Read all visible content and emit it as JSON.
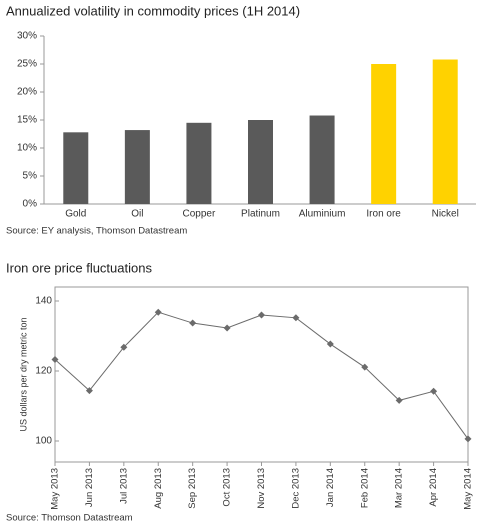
{
  "chart_data": [
    {
      "type": "bar",
      "title": "Annualized volatility in commodity prices (1H 2014)",
      "categories": [
        "Gold",
        "Oil",
        "Copper",
        "Platinum",
        "Aluminium",
        "Iron ore",
        "Nickel"
      ],
      "values": [
        12.8,
        13.2,
        14.5,
        15.0,
        15.8,
        25.0,
        25.8
      ],
      "colors": [
        "#5a5a5a",
        "#5a5a5a",
        "#5a5a5a",
        "#5a5a5a",
        "#5a5a5a",
        "#ffd200",
        "#ffd200"
      ],
      "ylim": [
        0,
        30
      ],
      "yticks": [
        {
          "value": 0,
          "label": "0%"
        },
        {
          "value": 5,
          "label": "5%"
        },
        {
          "value": 10,
          "label": "10%"
        },
        {
          "value": 15,
          "label": "15%"
        },
        {
          "value": 20,
          "label": "20%"
        },
        {
          "value": 25,
          "label": "25%"
        },
        {
          "value": 30,
          "label": "30%"
        }
      ],
      "source": "Source: EY analysis, Thomson Datastream"
    },
    {
      "type": "line",
      "title": "Iron ore price fluctuations",
      "y_label": "US dollars per dry metric ton",
      "categories": [
        "May 2013",
        "Jun 2013",
        "Jul 2013",
        "Aug 2013",
        "Sep 2013",
        "Oct 2013",
        "Nov 2013",
        "Dec 2013",
        "Jan 2014",
        "Feb 2014",
        "Mar 2014",
        "Apr 2014",
        "May 2014"
      ],
      "values": [
        123.3,
        114.4,
        126.8,
        136.8,
        133.7,
        132.3,
        136.0,
        135.2,
        127.7,
        121.1,
        111.6,
        114.2,
        100.6
      ],
      "color": "#6b6b6b",
      "ylim": [
        94,
        144
      ],
      "yticks": [
        100,
        120,
        140
      ],
      "source": "Source: Thomson Datastream"
    }
  ]
}
